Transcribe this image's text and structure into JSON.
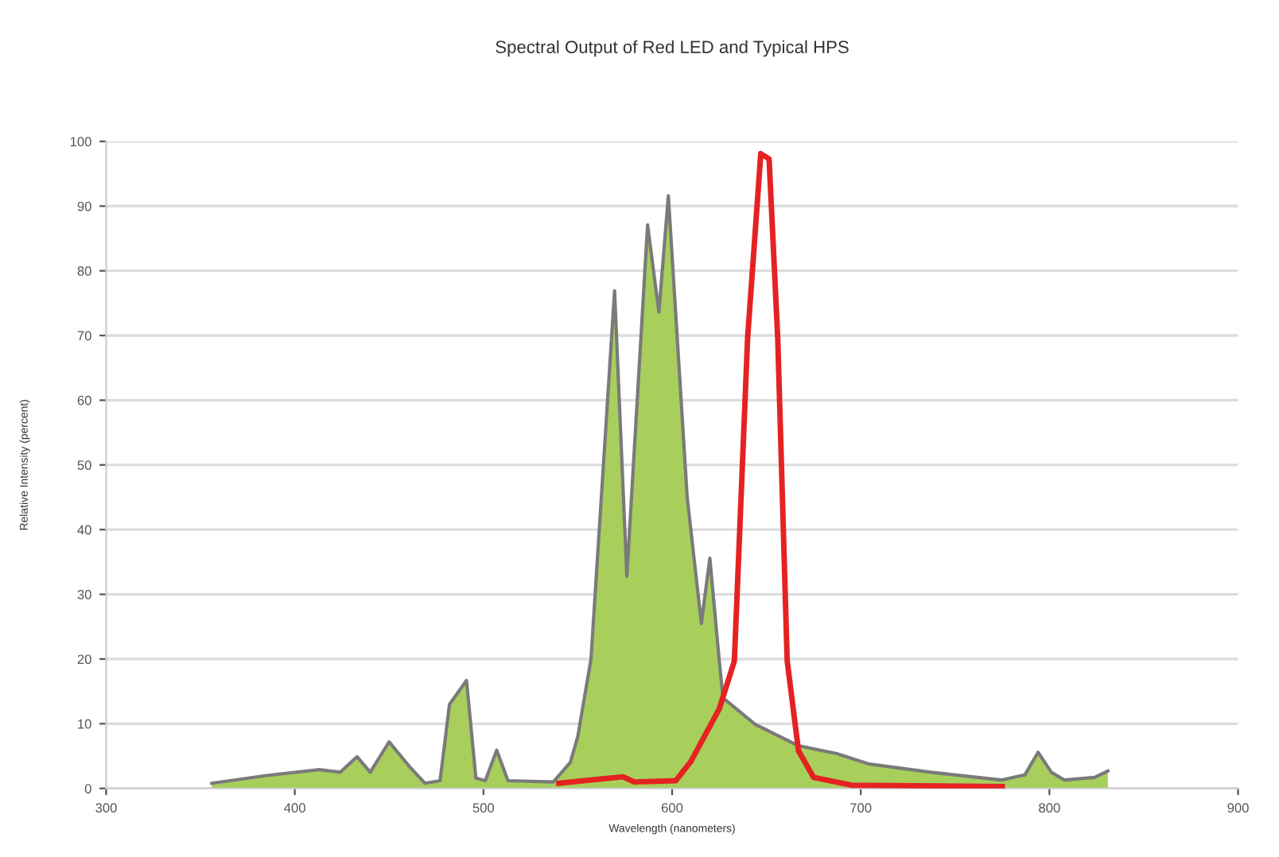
{
  "chart_data": {
    "type": "area",
    "title": "Spectral Output of Red LED and Typical HPS",
    "xlabel": "Wavelength (nanometers)",
    "ylabel": "Relative Intensity (percent)",
    "series": [
      {
        "color": "#a8cf5c",
        "x": [
          356,
          385,
          413,
          424,
          433,
          440,
          450,
          461,
          469,
          477,
          482,
          491,
          496,
          501,
          507,
          513,
          537,
          546,
          550,
          557,
          569.5,
          576,
          587,
          593,
          598,
          608,
          615.5,
          620,
          625,
          627,
          644,
          667,
          687,
          704,
          737,
          774.5,
          787,
          794,
          801,
          808,
          824,
          831
        ],
        "values": [
          0.8,
          2,
          2.9,
          2.5,
          4.9,
          2.5,
          7.2,
          3.3,
          0.8,
          1.2,
          13,
          16.7,
          1.6,
          1.2,
          5.9,
          1.2,
          1,
          4,
          8,
          20,
          76.9,
          32.8,
          87.1,
          73.6,
          91.6,
          45,
          25.5,
          35.6,
          19.7,
          14,
          9.9,
          6.6,
          5.4,
          3.8,
          2.5,
          1.3,
          2.1,
          5.6,
          2.5,
          1.3,
          1.7,
          2.7
        ]
      },
      {
        "type": "line",
        "color": "#e52222",
        "x": [
          540,
          574,
          580,
          602,
          610,
          625,
          633,
          640,
          647,
          651.4,
          656,
          661,
          667,
          675,
          695,
          775
        ],
        "values": [
          0.8,
          1.8,
          1,
          1.2,
          4.2,
          12.3,
          19.7,
          69.5,
          98.1,
          97.3,
          69.5,
          19.7,
          5.8,
          1.7,
          0.5,
          0.3
        ]
      }
    ],
    "xlim": [
      300,
      900
    ],
    "xticks": [
      300,
      400,
      500,
      600,
      700,
      800,
      900
    ],
    "ylim": [
      0,
      100
    ],
    "yticks": [
      0,
      10,
      20,
      30,
      40,
      50,
      60,
      70,
      80,
      90,
      100
    ],
    "grid": "y",
    "line_style": "solid",
    "marker": "none"
  }
}
